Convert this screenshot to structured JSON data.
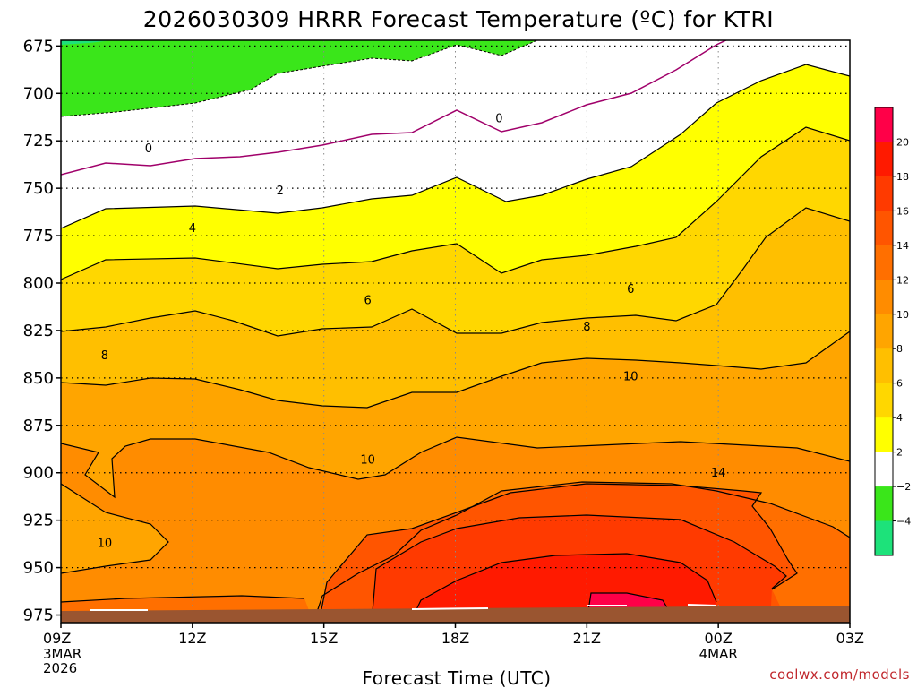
{
  "colors": {
    "band_lt_neg4": "#1de27a",
    "band_neg4_neg2": "#3ae61a",
    "band_neg2_2": "#ffffff",
    "band_2_4": "#ffff00",
    "band_4_6": "#ffd700",
    "band_6_8": "#ffbf00",
    "band_8_10": "#ffa500",
    "band_10_12": "#ff8c00",
    "band_12_14": "#ff6f00",
    "band_14_16": "#ff5500",
    "band_16_18": "#ff3a00",
    "band_18_20": "#ff1a00",
    "band_gt_20": "#ff0048",
    "zero_line": "#a0006a",
    "terrain": "#9a5530",
    "credit": "#c0282d"
  },
  "chart_data": {
    "type": "contour",
    "title": "2026030309 HRRR Forecast Temperature (ºC) for KTRI",
    "xlabel": "Forecast Time (UTC)",
    "ylabel": "",
    "credit": "coolwx.com/models",
    "x_ticks": [
      {
        "hour": 0,
        "label": "09Z",
        "sub1": "3MAR",
        "sub2": "2026"
      },
      {
        "hour": 3,
        "label": "12Z"
      },
      {
        "hour": 6,
        "label": "15Z"
      },
      {
        "hour": 9,
        "label": "18Z"
      },
      {
        "hour": 12,
        "label": "21Z"
      },
      {
        "hour": 15,
        "label": "00Z",
        "sub1": "4MAR"
      },
      {
        "hour": 18,
        "label": "03Z"
      }
    ],
    "xlim": [
      0,
      18
    ],
    "y_ticks": [
      675,
      700,
      725,
      750,
      775,
      800,
      825,
      850,
      875,
      900,
      925,
      950,
      975
    ],
    "ylim": [
      672,
      979
    ],
    "y_axis": "pressure_hPa_inverted",
    "colorbar_ticks": [
      "20",
      "18",
      "16",
      "14",
      "12",
      "10",
      "8",
      "6",
      "4",
      "2",
      "−2",
      "−4"
    ],
    "contour_labels": [
      {
        "text": "0",
        "hour": 2.0,
        "p": 729
      },
      {
        "text": "0",
        "hour": 10.0,
        "p": 713
      },
      {
        "text": "2",
        "hour": 5.0,
        "p": 751
      },
      {
        "text": "4",
        "hour": 3.0,
        "p": 771
      },
      {
        "text": "6",
        "hour": 7.0,
        "p": 809
      },
      {
        "text": "6",
        "hour": 13.0,
        "p": 803
      },
      {
        "text": "8",
        "hour": 1.0,
        "p": 838
      },
      {
        "text": "8",
        "hour": 12.0,
        "p": 823
      },
      {
        "text": "10",
        "hour": 13.0,
        "p": 849
      },
      {
        "text": "10",
        "hour": 7.0,
        "p": 893
      },
      {
        "text": "10",
        "hour": 1.0,
        "p": 937
      },
      {
        "text": "14",
        "hour": 15.0,
        "p": 900
      }
    ]
  }
}
